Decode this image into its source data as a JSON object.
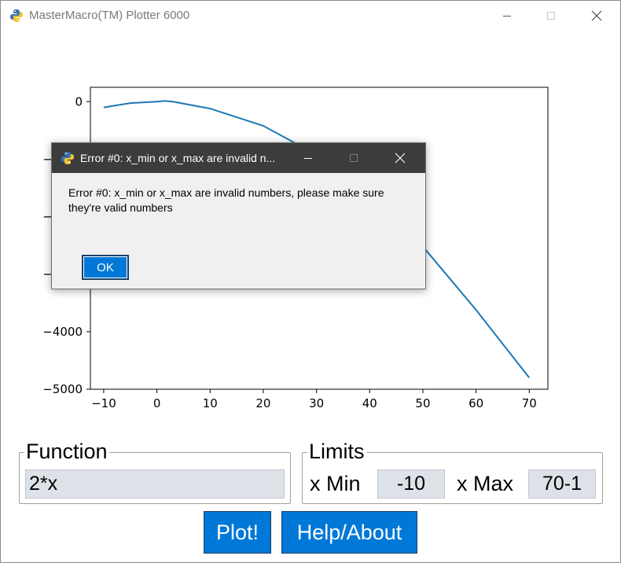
{
  "window": {
    "title": "MasterMacro(TM) Plotter 6000",
    "icon": "python-icon"
  },
  "chart_data": {
    "type": "line",
    "x": [
      -10,
      -5,
      0,
      1.5,
      3,
      10,
      20,
      30,
      40,
      50,
      60,
      70
    ],
    "y": [
      -100,
      -25,
      0,
      12,
      0,
      -120,
      -420,
      -920,
      -1620,
      -2520,
      -3620,
      -4800
    ],
    "xlim": [
      -12.5,
      73.5
    ],
    "ylim": [
      -5000,
      250
    ],
    "xticks": [
      "−10",
      "0",
      "10",
      "20",
      "30",
      "40",
      "50",
      "60",
      "70"
    ],
    "yticks": [
      "0",
      "−1000",
      "−2000",
      "−3000",
      "−4000",
      "−5000"
    ],
    "line_color": "#1f77b4",
    "grid": false
  },
  "function_frame": {
    "legend": "Function",
    "value": "2*x"
  },
  "limits_frame": {
    "legend": "Limits",
    "xmin_label": "x Min",
    "xmin_value": "-10",
    "xmax_label": "x Max",
    "xmax_value": "70-1"
  },
  "buttons": {
    "plot": "Plot!",
    "help": "Help/About"
  },
  "dialog": {
    "title": "Error #0: x_min or x_max are invalid n...",
    "message": "Error #0: x_min or x_max are invalid numbers, please make sure they're valid numbers",
    "ok": "OK"
  },
  "colors": {
    "accent": "#0078d7",
    "entry_bg": "#dde2e8",
    "dialog_titlebar": "#3c3c3c"
  }
}
